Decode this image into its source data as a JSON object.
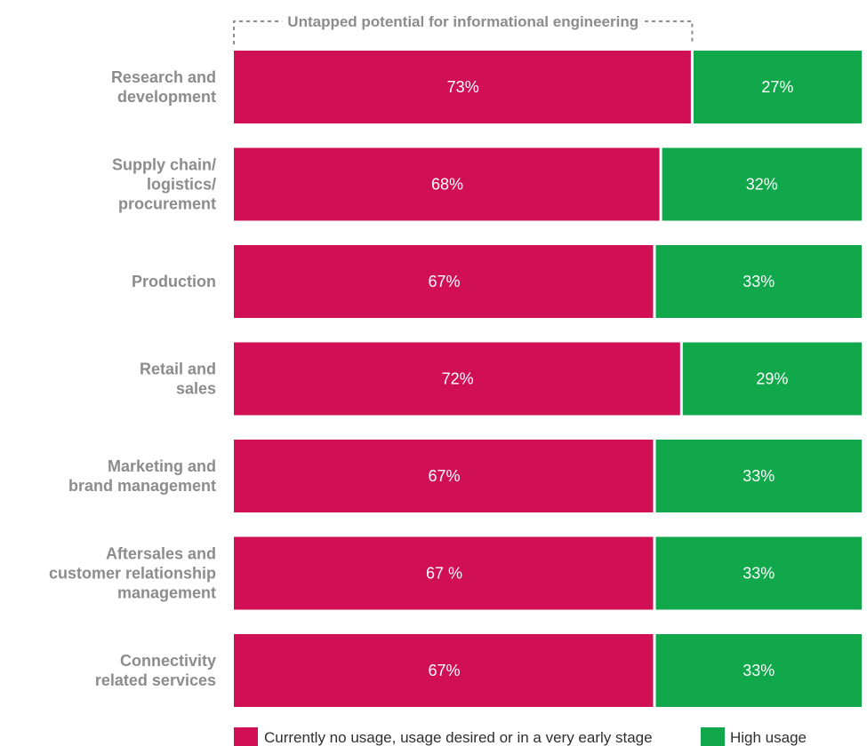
{
  "chart_data": {
    "type": "bar",
    "orientation": "horizontal",
    "stacked": true,
    "categories": [
      [
        "Research and",
        "development"
      ],
      [
        "Supply chain/",
        "logistics/",
        "procurement"
      ],
      [
        "Production"
      ],
      [
        "Retail and",
        "sales"
      ],
      [
        "Marketing and",
        "brand management"
      ],
      [
        "Aftersales and",
        "customer relationship",
        "management"
      ],
      [
        "Connectivity",
        "related services"
      ]
    ],
    "series": [
      {
        "name": "Currently no usage, usage desired or in a very early stage",
        "values": [
          73,
          68,
          67,
          72,
          67,
          67,
          67
        ],
        "data_labels": [
          "73%",
          "68%",
          "67%",
          "72%",
          "67%",
          "67 %",
          "67%"
        ],
        "color": "#d10f55"
      },
      {
        "name": "High usage",
        "values": [
          27,
          32,
          33,
          29,
          33,
          33,
          33
        ],
        "data_labels": [
          "27%",
          "32%",
          "33%",
          "29%",
          "33%",
          "33%",
          "33%"
        ],
        "color": "#10a84a"
      }
    ],
    "annotation": "Untapped potential for informational engineering",
    "annotation_color": "#8c8c8c",
    "xlim": [
      0,
      100
    ],
    "grid": false,
    "legend_position": "bottom"
  }
}
